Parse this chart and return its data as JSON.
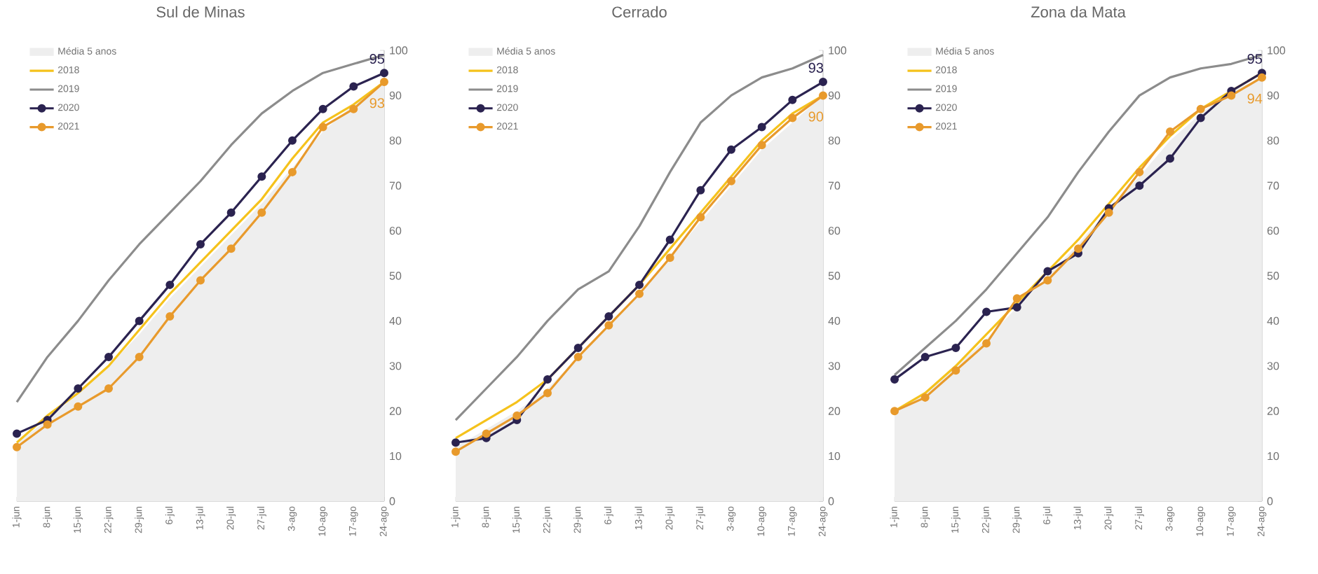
{
  "chart_data": [
    {
      "type": "line",
      "title": "Sul de Minas",
      "categories": [
        "1-jun",
        "8-jun",
        "15-jun",
        "22-jun",
        "29-jun",
        "6-jul",
        "13-jul",
        "20-jul",
        "27-jul",
        "3-ago",
        "10-ago",
        "17-ago",
        "24-ago"
      ],
      "ylim": [
        0,
        100
      ],
      "yticks": [
        0,
        10,
        20,
        30,
        40,
        50,
        60,
        70,
        80,
        90,
        100
      ],
      "legend": "top left",
      "grid": false,
      "series": [
        {
          "name": "Média 5 anos",
          "type": "area",
          "color": "#eeeeee",
          "values": [
            13,
            18,
            24,
            30,
            37,
            45,
            52,
            59,
            66,
            74,
            82,
            88,
            93
          ]
        },
        {
          "name": "2018",
          "type": "line",
          "marker": "none",
          "color": "#f5c21c",
          "values": [
            13,
            19,
            24,
            30,
            38,
            46,
            53,
            60,
            67,
            76,
            84,
            88,
            93
          ]
        },
        {
          "name": "2019",
          "type": "line",
          "marker": "none",
          "color": "#8c8c8c",
          "values": [
            22,
            32,
            40,
            49,
            57,
            64,
            71,
            79,
            86,
            91,
            95,
            97,
            99
          ]
        },
        {
          "name": "2020",
          "type": "line",
          "marker": "circle",
          "color": "#2b2350",
          "values": [
            15,
            18,
            25,
            32,
            40,
            48,
            57,
            64,
            72,
            80,
            87,
            92,
            95
          ],
          "value_labels": [
            null,
            null,
            null,
            null,
            null,
            null,
            null,
            null,
            null,
            null,
            null,
            null,
            "95"
          ]
        },
        {
          "name": "2021",
          "type": "line",
          "marker": "circle",
          "color": "#e89a2c",
          "values": [
            12,
            17,
            21,
            25,
            32,
            41,
            49,
            56,
            64,
            73,
            83,
            87,
            93
          ],
          "value_labels": [
            null,
            null,
            null,
            null,
            null,
            null,
            null,
            null,
            null,
            null,
            null,
            null,
            "93"
          ]
        }
      ]
    },
    {
      "type": "line",
      "title": "Cerrado",
      "categories": [
        "1-jun",
        "8-jun",
        "15-jun",
        "22-jun",
        "29-jun",
        "6-jul",
        "13-jul",
        "20-jul",
        "27-jul",
        "3-ago",
        "10-ago",
        "17-ago",
        "24-ago"
      ],
      "ylim": [
        0,
        100
      ],
      "yticks": [
        0,
        10,
        20,
        30,
        40,
        50,
        60,
        70,
        80,
        90,
        100
      ],
      "legend": "top left",
      "grid": false,
      "series": [
        {
          "name": "Média 5 anos",
          "type": "area",
          "color": "#eeeeee",
          "values": [
            12,
            16,
            20,
            25,
            32,
            39,
            46,
            54,
            62,
            70,
            78,
            84,
            90
          ]
        },
        {
          "name": "2018",
          "type": "line",
          "marker": "none",
          "color": "#f5c21c",
          "values": [
            14,
            18,
            22,
            27,
            34,
            41,
            48,
            56,
            64,
            72,
            80,
            86,
            90
          ]
        },
        {
          "name": "2019",
          "type": "line",
          "marker": "none",
          "color": "#8c8c8c",
          "values": [
            18,
            25,
            32,
            40,
            47,
            51,
            61,
            73,
            84,
            90,
            94,
            96,
            99
          ]
        },
        {
          "name": "2020",
          "type": "line",
          "marker": "circle",
          "color": "#2b2350",
          "values": [
            13,
            14,
            18,
            27,
            34,
            41,
            48,
            58,
            69,
            78,
            83,
            89,
            93
          ],
          "value_labels": [
            null,
            null,
            null,
            null,
            null,
            null,
            null,
            null,
            null,
            null,
            null,
            null,
            "93"
          ]
        },
        {
          "name": "2021",
          "type": "line",
          "marker": "circle",
          "color": "#e89a2c",
          "values": [
            11,
            15,
            19,
            24,
            32,
            39,
            46,
            54,
            63,
            71,
            79,
            85,
            90
          ],
          "value_labels": [
            null,
            null,
            null,
            null,
            null,
            null,
            null,
            null,
            null,
            null,
            null,
            null,
            "90"
          ]
        }
      ]
    },
    {
      "type": "line",
      "title": "Zona da Mata",
      "categories": [
        "1-jun",
        "8-jun",
        "15-jun",
        "22-jun",
        "29-jun",
        "6-jul",
        "13-jul",
        "20-jul",
        "27-jul",
        "3-ago",
        "10-ago",
        "17-ago",
        "24-ago"
      ],
      "ylim": [
        0,
        100
      ],
      "yticks": [
        0,
        10,
        20,
        30,
        40,
        50,
        60,
        70,
        80,
        90,
        100
      ],
      "legend": "top left",
      "grid": false,
      "series": [
        {
          "name": "Média 5 anos",
          "type": "area",
          "color": "#eeeeee",
          "values": [
            20,
            24,
            30,
            36,
            43,
            50,
            57,
            65,
            72,
            80,
            86,
            91,
            94
          ]
        },
        {
          "name": "2018",
          "type": "line",
          "marker": "none",
          "color": "#f5c21c",
          "values": [
            20,
            24,
            30,
            37,
            44,
            51,
            58,
            66,
            74,
            81,
            87,
            91,
            95
          ]
        },
        {
          "name": "2019",
          "type": "line",
          "marker": "none",
          "color": "#8c8c8c",
          "values": [
            28,
            34,
            40,
            47,
            55,
            63,
            73,
            82,
            90,
            94,
            96,
            97,
            99
          ]
        },
        {
          "name": "2020",
          "type": "line",
          "marker": "circle",
          "color": "#2b2350",
          "values": [
            27,
            32,
            34,
            42,
            43,
            51,
            55,
            65,
            70,
            76,
            85,
            91,
            95
          ],
          "value_labels": [
            null,
            null,
            null,
            null,
            null,
            null,
            null,
            null,
            null,
            null,
            null,
            null,
            "95"
          ]
        },
        {
          "name": "2021",
          "type": "line",
          "marker": "circle",
          "color": "#e89a2c",
          "values": [
            20,
            23,
            29,
            35,
            45,
            49,
            56,
            64,
            73,
            82,
            87,
            90,
            94
          ],
          "value_labels": [
            null,
            null,
            null,
            null,
            null,
            null,
            null,
            null,
            null,
            null,
            null,
            null,
            "94"
          ]
        }
      ]
    }
  ]
}
